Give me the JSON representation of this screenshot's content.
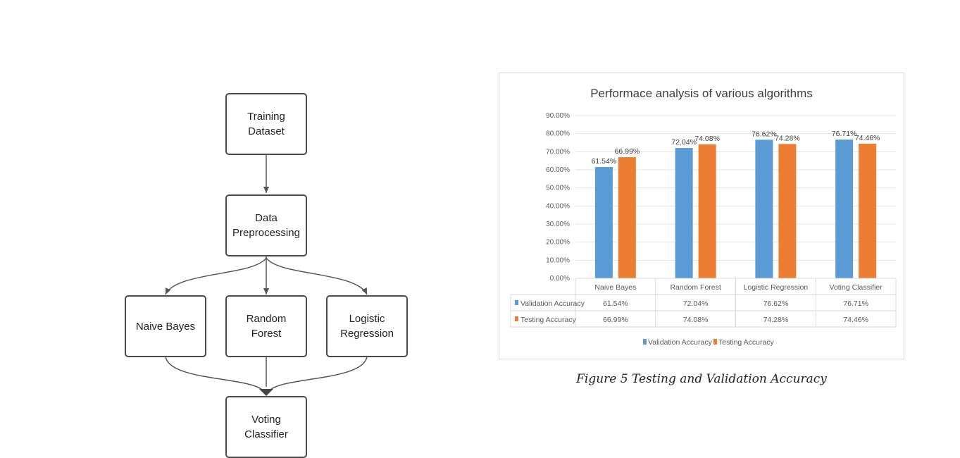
{
  "flowchart": {
    "nodes": {
      "training": "Training\nDataset",
      "preprocessing": "Data\nPreprocessing",
      "naive_bayes": "Naive Bayes",
      "random_forest": "Random\nForest",
      "logistic": "Logistic\nRegression",
      "voting": "Voting\nClassifier"
    }
  },
  "chart_data": {
    "type": "bar",
    "title": "Performace analysis of various algorithms",
    "categories": [
      "Naive Bayes",
      "Random Forest",
      "Logistic Regression",
      "Voting Classifier"
    ],
    "series": [
      {
        "name": "Validation Accuracy",
        "color": "#5b9bd5",
        "values": [
          61.54,
          72.04,
          76.62,
          76.71
        ],
        "labels": [
          "61.54%",
          "72.04%",
          "76.62%",
          "76.71%"
        ]
      },
      {
        "name": "Testing Accuracy",
        "color": "#ed7d31",
        "values": [
          66.99,
          74.08,
          74.28,
          74.46
        ],
        "labels": [
          "66.99%",
          "74.08%",
          "74.28%",
          "74.46%"
        ]
      }
    ],
    "ylim": [
      0,
      90
    ],
    "yticks": [
      "0.00%",
      "10.00%",
      "20.00%",
      "30.00%",
      "40.00%",
      "50.00%",
      "60.00%",
      "70.00%",
      "80.00%",
      "90.00%"
    ],
    "grid": true,
    "legend": "bottom",
    "data_table": true
  },
  "caption": "Figure 5 Testing and Validation Accuracy"
}
